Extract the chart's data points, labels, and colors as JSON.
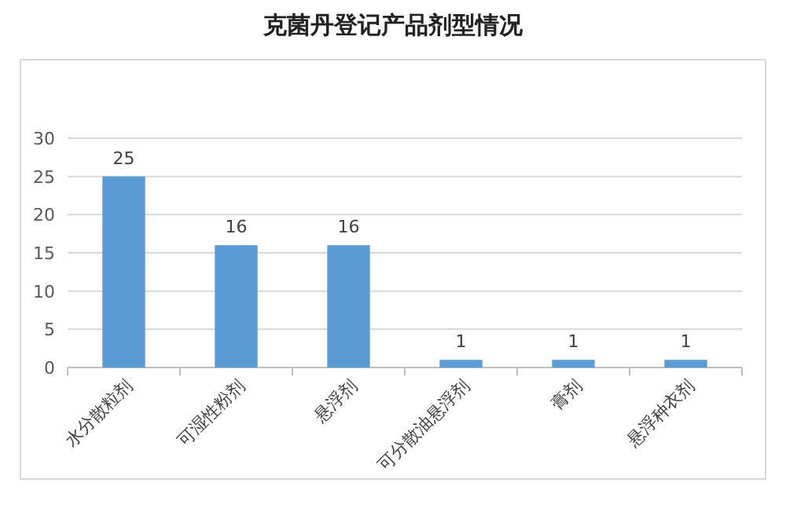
{
  "chart_data": {
    "type": "bar",
    "title": "克菌丹登记产品剂型情况",
    "categories": [
      "水分散粒剂",
      "可湿性粉剂",
      "悬浮剂",
      "可分散油悬浮剂",
      "膏剂",
      "悬浮种衣剂"
    ],
    "values": [
      25,
      16,
      16,
      1,
      1,
      1
    ],
    "color": "#5b9bd5",
    "ylim": [
      0,
      30
    ],
    "yticks": [
      0,
      5,
      10,
      15,
      20,
      25,
      30
    ],
    "grid": "y",
    "data_labels": true
  }
}
